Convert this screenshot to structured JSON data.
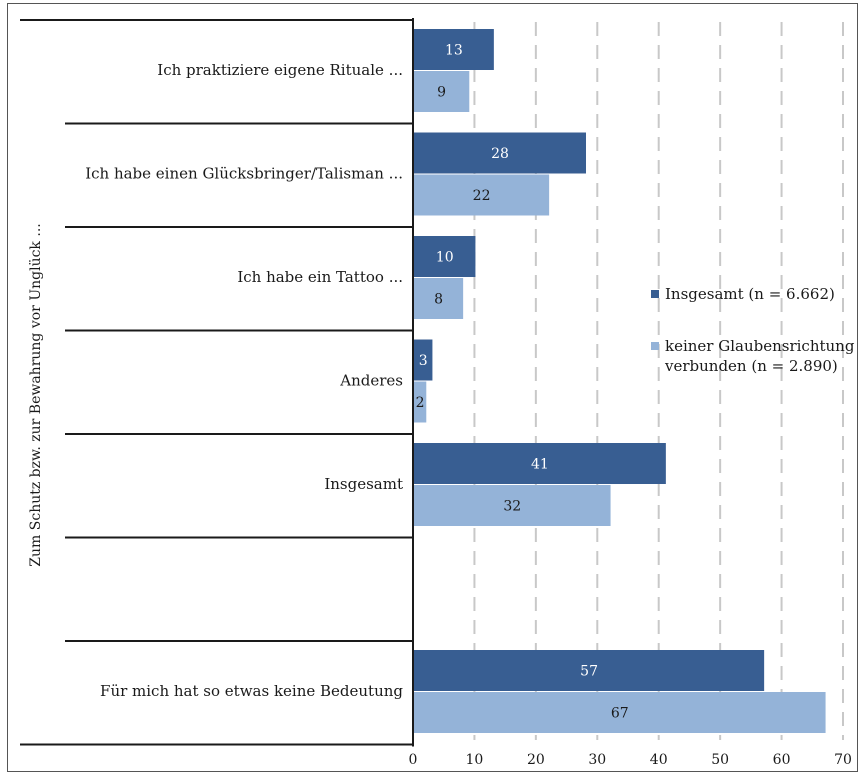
{
  "chart_data": {
    "type": "bar",
    "orientation": "horizontal",
    "group_axis_label": "Zum Schutz bzw. zur Bewahrung vor Unglück ...",
    "categories": [
      "Ich praktiziere eigene Rituale ...",
      "Ich habe einen Glücksbringer/Talisman ...",
      "Ich habe ein Tattoo ...",
      "Anderes",
      "Insgesamt",
      "",
      "Für mich hat so etwas keine Bedeutung"
    ],
    "series": [
      {
        "name": "Insgesamt (n = 6.662)",
        "color": "#385e92",
        "label_color": "#ffffff",
        "values": [
          13,
          28,
          10,
          3,
          41,
          null,
          57
        ]
      },
      {
        "name": "keiner Glaubensrichtung verbunden (n = 2.890)",
        "color": "#94b3d8",
        "label_color": "#1a1a1a",
        "values": [
          9,
          22,
          8,
          2,
          32,
          null,
          67
        ]
      }
    ],
    "xlim": [
      0,
      70
    ],
    "xticks": [
      "0",
      "10",
      "20",
      "30",
      "40",
      "50",
      "60",
      "70"
    ],
    "grid": "vertical dashed",
    "legend_position": "right",
    "legend": [
      {
        "lines": [
          "Insgesamt (n = 6.662)"
        ]
      },
      {
        "lines": [
          "keiner Glaubensrichtung",
          "verbunden (n = 2.890)"
        ]
      }
    ]
  }
}
